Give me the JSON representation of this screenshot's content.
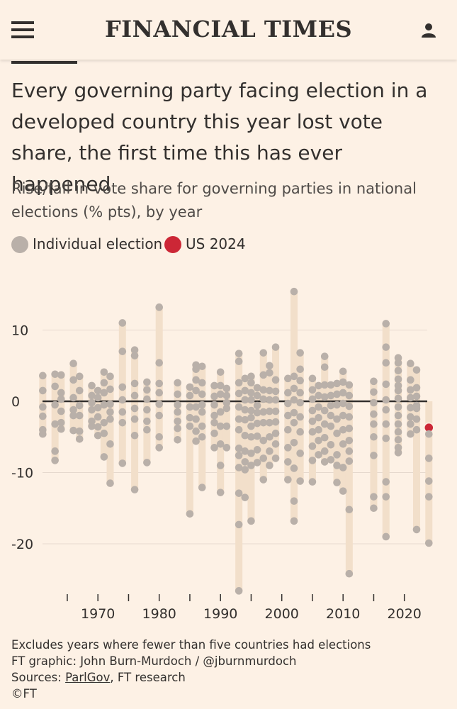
{
  "header": {
    "brand": "FINANCIAL TIMES",
    "menu_icon": "hamburger-menu-icon",
    "user_icon": "user-account-icon"
  },
  "colors": {
    "background": "#fdf1e5",
    "range_bar": "#f2dfca",
    "dot": "#b9b0a9",
    "highlight": "#cc2736",
    "zero_line": "#33302e",
    "text": "#33302e"
  },
  "article": {
    "title": "Every governing party facing election in a developed country this year lost vote share, the first time this has ever happened",
    "subtitle": "Rise/fall in vote share for governing parties in national elections (% pts), by year"
  },
  "legend": {
    "individual": "Individual election",
    "highlight": "US 2024"
  },
  "chart_data": {
    "type": "scatter",
    "title": "Rise/fall in vote share for governing parties in national elections (% pts), by year",
    "xlabel": "",
    "ylabel": "% pts",
    "xlim": [
      1962,
      2026
    ],
    "ylim": [
      -27,
      16
    ],
    "x_ticks": [
      1965,
      1970,
      1975,
      1980,
      1985,
      1990,
      1995,
      2000,
      2005,
      2010,
      2015,
      2020
    ],
    "x_tick_labels": [
      "1970",
      "1980",
      "1990",
      "2000",
      "2010",
      "2020"
    ],
    "x_tick_label_values": [
      1970,
      1980,
      1990,
      2000,
      2010,
      2020
    ],
    "y_ticks": [
      10,
      0,
      -10,
      -20
    ],
    "y_tick_labels": [
      "10",
      "0",
      "-10",
      "-20"
    ],
    "grid": true,
    "highlight": {
      "name": "US 2024",
      "year": 2024,
      "value": -3.7
    },
    "series": [
      {
        "year": 1961,
        "values": [
          3.6,
          1.5,
          -0.8,
          -2.1,
          -4.0,
          -4.6
        ]
      },
      {
        "year": 1963,
        "values": [
          3.8,
          2.1,
          -0.5,
          -3.2,
          -7.0,
          -8.3
        ]
      },
      {
        "year": 1964,
        "values": [
          3.7,
          1.2,
          0.3,
          -1.4,
          -3.0,
          -3.9
        ]
      },
      {
        "year": 1966,
        "values": [
          5.3,
          3.0,
          0.5,
          -1.2,
          -2.0,
          -4.1
        ]
      },
      {
        "year": 1967,
        "values": [
          3.5,
          1.5,
          -0.6,
          -2.0,
          -4.2,
          -5.3
        ]
      },
      {
        "year": 1969,
        "values": [
          2.2,
          0.8,
          -0.2,
          -1.2,
          -2.8,
          -3.5
        ]
      },
      {
        "year": 1970,
        "values": [
          1.5,
          0.5,
          -0.9,
          -2.2,
          -3.6,
          -4.8
        ]
      },
      {
        "year": 1971,
        "values": [
          4.1,
          2.6,
          1.2,
          -0.5,
          -3.0,
          -4.5,
          -7.8
        ]
      },
      {
        "year": 1972,
        "values": [
          3.5,
          1.7,
          -0.4,
          -1.5,
          -2.5,
          -6.0,
          -11.5
        ]
      },
      {
        "year": 1974,
        "values": [
          11.0,
          7.0,
          2.0,
          0.2,
          -1.5,
          -3.0,
          -8.7
        ]
      },
      {
        "year": 1976,
        "values": [
          7.2,
          6.4,
          2.5,
          0.8,
          -1.0,
          -2.5,
          -4.8,
          -12.4
        ]
      },
      {
        "year": 1978,
        "values": [
          2.7,
          1.6,
          0.3,
          -1.2,
          -2.8,
          -4.0,
          -8.6
        ]
      },
      {
        "year": 1980,
        "values": [
          13.2,
          5.4,
          2.5,
          1.2,
          -0.4,
          -2.0,
          -5.0,
          -6.5
        ]
      },
      {
        "year": 1983,
        "values": [
          2.6,
          1.0,
          -0.5,
          -1.5,
          -2.8,
          -3.8,
          -5.4
        ]
      },
      {
        "year": 1985,
        "values": [
          2.0,
          0.8,
          -0.8,
          -2.3,
          -3.5,
          -15.8
        ]
      },
      {
        "year": 1986,
        "values": [
          5.1,
          4.5,
          3.0,
          1.5,
          -0.8,
          -2.5,
          -4.2,
          -5.6
        ]
      },
      {
        "year": 1987,
        "values": [
          4.9,
          2.6,
          1.0,
          -0.5,
          -1.5,
          -3.5,
          -5.0,
          -12.1
        ]
      },
      {
        "year": 1989,
        "values": [
          2.2,
          0.7,
          -0.5,
          -2.0,
          -3.0,
          -4.5,
          -6.5
        ]
      },
      {
        "year": 1990,
        "values": [
          4.1,
          2.2,
          1.0,
          -1.5,
          -3.5,
          -6.0,
          -9.0,
          -12.8
        ]
      },
      {
        "year": 1991,
        "values": [
          1.8,
          0.8,
          -0.2,
          -1.0,
          -3.5,
          -6.5
        ]
      },
      {
        "year": 1993,
        "values": [
          6.7,
          5.6,
          2.6,
          1.1,
          -0.8,
          -2.5,
          -4.0,
          -6.6,
          -7.6,
          -9.3,
          -12.9,
          -17.3,
          -26.6
        ]
      },
      {
        "year": 1994,
        "values": [
          3.2,
          1.5,
          0.2,
          -1.2,
          -2.6,
          -4.8,
          -7.0,
          -8.5,
          -9.6,
          -13.5
        ]
      },
      {
        "year": 1995,
        "values": [
          3.5,
          2.6,
          1.2,
          0.2,
          -1.3,
          -2.3,
          -3.5,
          -5.0,
          -7.3,
          -9.0,
          -16.8
        ]
      },
      {
        "year": 1996,
        "values": [
          1.9,
          0.8,
          -0.6,
          -1.6,
          -3.1,
          -4.9,
          -6.8,
          -8.6
        ]
      },
      {
        "year": 1997,
        "values": [
          6.8,
          3.7,
          1.6,
          0.3,
          -1.5,
          -3.0,
          -5.5,
          -8.0,
          -11.0
        ]
      },
      {
        "year": 1998,
        "values": [
          5.0,
          4.0,
          1.5,
          0.2,
          -1.4,
          -3.0,
          -5.0,
          -7.0,
          -9.0
        ]
      },
      {
        "year": 1999,
        "values": [
          7.6,
          3.0,
          1.4,
          0.2,
          -1.4,
          -2.9,
          -4.5,
          -6.0,
          -8.0
        ]
      },
      {
        "year": 2001,
        "values": [
          3.2,
          1.2,
          -0.3,
          -2.0,
          -4.0,
          -6.5,
          -8.5,
          -11.0
        ]
      },
      {
        "year": 2002,
        "values": [
          15.4,
          3.5,
          1.8,
          0.2,
          -1.6,
          -3.0,
          -5.8,
          -9.4,
          -14.0,
          -16.8
        ]
      },
      {
        "year": 2003,
        "values": [
          6.8,
          4.5,
          2.9,
          1.2,
          -0.2,
          -2.2,
          -4.3,
          -7.3,
          -11.2
        ]
      },
      {
        "year": 2005,
        "values": [
          3.2,
          1.6,
          0.3,
          -1.3,
          -2.8,
          -4.3,
          -6.3,
          -8.3,
          -11.3
        ]
      },
      {
        "year": 2006,
        "values": [
          2.2,
          0.8,
          -0.8,
          -2.3,
          -4.0,
          -5.5,
          -7.5
        ]
      },
      {
        "year": 2007,
        "values": [
          6.3,
          4.8,
          2.3,
          0.6,
          -1.3,
          -3.2,
          -5.1,
          -7.0,
          -8.5
        ]
      },
      {
        "year": 2008,
        "values": [
          2.3,
          0.8,
          -0.6,
          -2.0,
          -3.5,
          -6.1,
          -8.2
        ]
      },
      {
        "year": 2009,
        "values": [
          2.5,
          1.0,
          -0.5,
          -2.5,
          -4.5,
          -7.5,
          -9.0,
          -11.4
        ]
      },
      {
        "year": 2010,
        "values": [
          4.2,
          2.7,
          1.2,
          -0.3,
          -2.0,
          -4.0,
          -6.0,
          -9.3,
          -12.6
        ]
      },
      {
        "year": 2011,
        "values": [
          2.3,
          0.8,
          -0.7,
          -2.2,
          -3.8,
          -5.5,
          -7.0,
          -8.4,
          -15.2,
          -24.2
        ]
      },
      {
        "year": 2015,
        "values": [
          2.8,
          1.3,
          -0.2,
          -1.8,
          -3.2,
          -5.0,
          -7.6,
          -13.4,
          -15.0
        ]
      },
      {
        "year": 2017,
        "values": [
          10.9,
          7.6,
          5.4,
          2.4,
          0.2,
          -1.2,
          -3.2,
          -5.2,
          -11.3,
          -13.4,
          -19.0
        ]
      },
      {
        "year": 2019,
        "values": [
          6.1,
          5.4,
          4.3,
          3.1,
          2.2,
          1.5,
          0.4,
          -0.8,
          -2.0,
          -3.2,
          -4.3,
          -5.4,
          -6.5,
          -7.2
        ]
      },
      {
        "year": 2021,
        "values": [
          5.3,
          3.0,
          1.6,
          0.5,
          -0.9,
          -2.2,
          -3.2,
          -4.6
        ]
      },
      {
        "year": 2022,
        "values": [
          4.4,
          1.9,
          0.7,
          -0.6,
          -1.0,
          -2.5,
          -4.0,
          -18.0
        ]
      },
      {
        "year": 2024,
        "values": [
          -3.7,
          -4.6,
          -8.0,
          -11.2,
          -13.4,
          -19.9
        ]
      }
    ]
  },
  "footnote": {
    "line1": "Excludes years where fewer than five countries had elections",
    "line2": "FT graphic: John Burn-Murdoch / @jburnmurdoch",
    "sources_prefix": "Sources: ",
    "sources_link": "ParlGov",
    "sources_suffix": ", FT research",
    "copyright": "©FT"
  }
}
